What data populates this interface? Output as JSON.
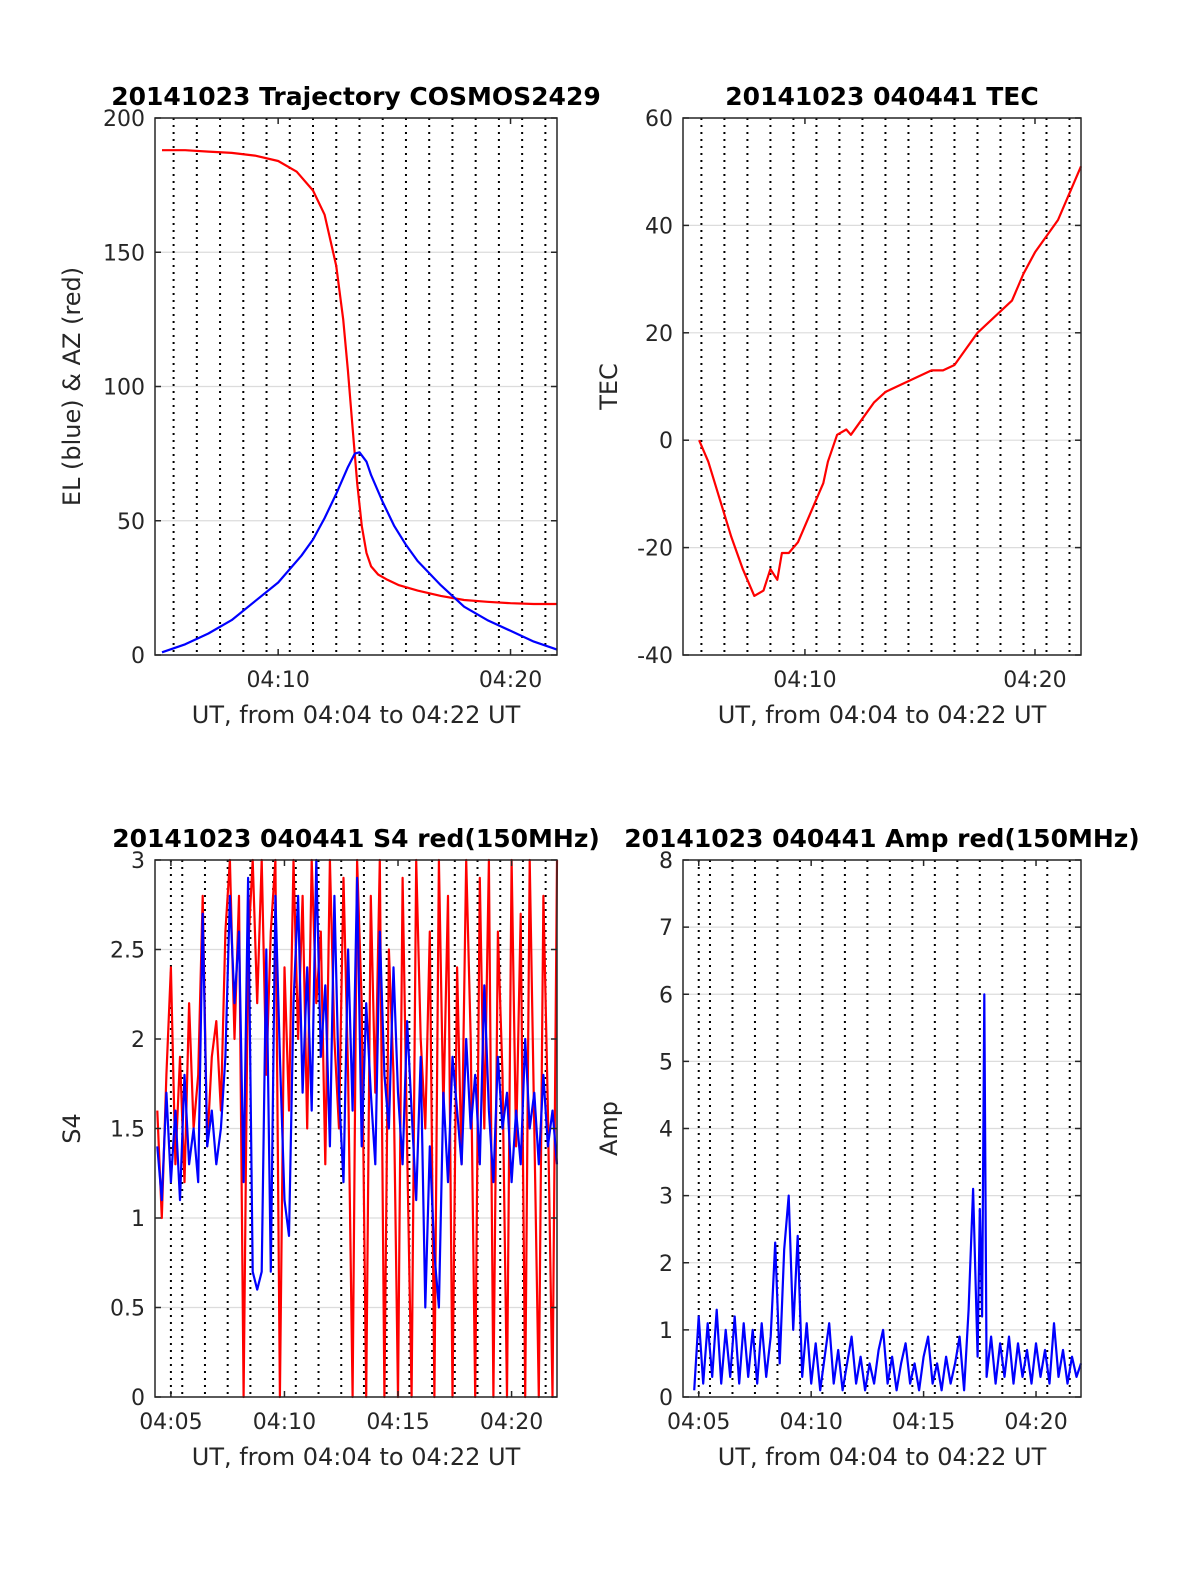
{
  "chart_data": [
    {
      "type": "line",
      "title": "20141023 Trajectory COSMOS2429",
      "xlabel": "UT, from 04:04 to 04:22 UT",
      "ylabel": "EL (blue) & AZ (red)",
      "xlim": [
        4.7,
        22
      ],
      "ylim": [
        0,
        200
      ],
      "yticks": [
        0,
        50,
        100,
        150,
        200
      ],
      "xticks": [
        {
          "v": 10,
          "label": "04:10"
        },
        {
          "v": 20,
          "label": "04:20"
        }
      ],
      "vgrid": [
        5.5,
        6.5,
        7.5,
        8.5,
        9.5,
        10.5,
        11.5,
        12.5,
        13.5,
        14.5,
        15.5,
        16.5,
        17.5,
        18.5,
        19.5,
        20.5,
        21.5
      ],
      "series": [
        {
          "color": "#ff0000",
          "x": [
            5.0,
            6.0,
            7.0,
            8.0,
            9.0,
            10.0,
            10.8,
            11.5,
            12.0,
            12.5,
            12.8,
            13.0,
            13.2,
            13.4,
            13.6,
            13.8,
            14.0,
            14.3,
            14.7,
            15.2,
            16.0,
            17.0,
            18.0,
            19.0,
            20.0,
            21.0,
            22.0
          ],
          "y": [
            188,
            188,
            187.5,
            187,
            186,
            184,
            180,
            173,
            164,
            145,
            125,
            106,
            85,
            64,
            48,
            38,
            33,
            30,
            28,
            26,
            24,
            22,
            20.5,
            19.8,
            19.3,
            19.0,
            19.0
          ]
        },
        {
          "color": "#0000ff",
          "x": [
            5.0,
            6.0,
            7.0,
            8.0,
            9.0,
            10.0,
            11.0,
            11.5,
            12.0,
            12.5,
            13.0,
            13.3,
            13.5,
            13.8,
            14.0,
            14.5,
            15.0,
            15.5,
            16.0,
            17.0,
            18.0,
            19.0,
            20.0,
            21.0,
            22.0
          ],
          "y": [
            1,
            4,
            8,
            13,
            20,
            27,
            37,
            43,
            51,
            60,
            70,
            75,
            75.5,
            72,
            67,
            57,
            48,
            41,
            35,
            26,
            18,
            13,
            9,
            5,
            2
          ]
        }
      ]
    },
    {
      "type": "line",
      "title": "20141023 040441 TEC",
      "xlabel": "UT, from 04:04 to 04:22 UT",
      "ylabel": "TEC",
      "xlim": [
        4.7,
        22
      ],
      "ylim": [
        -40,
        60
      ],
      "yticks": [
        -40,
        -20,
        0,
        20,
        40,
        60
      ],
      "xticks": [
        {
          "v": 10,
          "label": "04:10"
        },
        {
          "v": 20,
          "label": "04:20"
        }
      ],
      "vgrid": [
        5.5,
        6.5,
        7.5,
        8.5,
        9.5,
        10.5,
        11.5,
        12.5,
        13.5,
        14.5,
        15.5,
        16.5,
        17.5,
        18.5,
        19.5,
        20.5,
        21.5
      ],
      "series": [
        {
          "color": "#ff0000",
          "x": [
            5.4,
            5.8,
            6.3,
            6.8,
            7.3,
            7.8,
            8.2,
            8.5,
            8.8,
            9.0,
            9.3,
            9.7,
            10.0,
            10.4,
            10.8,
            11.0,
            11.4,
            11.8,
            12.0,
            12.5,
            13.0,
            13.5,
            14.0,
            14.5,
            15.0,
            15.5,
            16.0,
            16.5,
            17.0,
            17.5,
            18.0,
            18.5,
            19.0,
            19.5,
            20.0,
            20.5,
            21.0,
            21.5,
            22.0
          ],
          "y": [
            0,
            -4,
            -11,
            -18,
            -24,
            -29,
            -28,
            -24,
            -26,
            -21,
            -21,
            -19,
            -16,
            -12,
            -8,
            -4,
            1,
            2,
            1,
            4,
            7,
            9,
            10,
            11,
            12,
            13,
            13,
            14,
            17,
            20,
            22,
            24,
            26,
            31,
            35,
            38,
            41,
            46,
            51
          ]
        }
      ]
    },
    {
      "type": "line",
      "title": "20141023 040441 S4 red(150MHz)",
      "xlabel": "UT, from 04:04 to 04:22 UT",
      "ylabel": "S4",
      "xlim": [
        4.3,
        22
      ],
      "ylim": [
        0,
        3
      ],
      "yticks": [
        0,
        0.5,
        1,
        1.5,
        2,
        2.5,
        3
      ],
      "yticklabels": [
        "0",
        "0.5",
        "1",
        "1.5",
        "2",
        "2.5",
        "3"
      ],
      "xticks": [
        {
          "v": 5,
          "label": "04:05"
        },
        {
          "v": 10,
          "label": "04:10"
        },
        {
          "v": 15,
          "label": "04:15"
        },
        {
          "v": 20,
          "label": "04:20"
        }
      ],
      "vgrid": [
        5.0,
        5.5,
        6.5,
        7.5,
        8.5,
        9.5,
        10.5,
        11.5,
        12.5,
        13.5,
        14.5,
        15.5,
        16.5,
        17.5,
        18.5,
        19.5,
        20.5,
        21.5
      ],
      "series": [
        {
          "color": "#ff0000",
          "x": [
            4.4,
            4.6,
            4.8,
            5.0,
            5.2,
            5.4,
            5.6,
            5.8,
            6.0,
            6.2,
            6.4,
            6.6,
            6.8,
            7.0,
            7.2,
            7.4,
            7.6,
            7.8,
            8.0,
            8.2,
            8.4,
            8.6,
            8.8,
            9.0,
            9.2,
            9.4,
            9.6,
            9.8,
            10.0,
            10.2,
            10.4,
            10.6,
            10.8,
            11.0,
            11.2,
            11.4,
            11.6,
            11.8,
            12.0,
            12.2,
            12.4,
            12.6,
            12.8,
            13.0,
            13.2,
            13.4,
            13.6,
            13.8,
            14.0,
            14.2,
            14.4,
            14.6,
            14.8,
            15.0,
            15.2,
            15.4,
            15.6,
            15.8,
            16.0,
            16.2,
            16.4,
            16.6,
            16.8,
            17.0,
            17.2,
            17.4,
            17.6,
            17.8,
            18.0,
            18.2,
            18.4,
            18.6,
            18.8,
            19.0,
            19.2,
            19.4,
            19.6,
            19.8,
            20.0,
            20.2,
            20.4,
            20.6,
            20.8,
            21.0,
            21.2,
            21.4,
            21.6,
            21.8,
            22.0
          ],
          "y": [
            1.6,
            1.0,
            1.8,
            2.4,
            1.3,
            1.9,
            1.2,
            2.2,
            1.5,
            1.8,
            2.8,
            1.4,
            1.9,
            2.1,
            1.6,
            2.6,
            3.0,
            2.0,
            2.8,
            0,
            2.5,
            3.0,
            2.2,
            3.0,
            1.8,
            2.6,
            3.0,
            0,
            2.4,
            1.6,
            3.0,
            2.0,
            2.8,
            1.5,
            3.0,
            2.2,
            2.6,
            1.3,
            3.0,
            2.0,
            1.5,
            2.9,
            1.8,
            0,
            3.0,
            2.2,
            0,
            2.8,
            1.7,
            3.0,
            0,
            2.5,
            1.8,
            0,
            2.9,
            1.4,
            0,
            3.0,
            2.0,
            1.5,
            2.6,
            0,
            3.0,
            1.6,
            2.8,
            0,
            2.4,
            1.3,
            3.0,
            2.0,
            0,
            2.9,
            1.5,
            3.0,
            0,
            2.6,
            1.8,
            0,
            3.0,
            1.4,
            2.7,
            0,
            3.0,
            1.5,
            0,
            2.8,
            1.6,
            0,
            3.0
          ]
        },
        {
          "color": "#0000ff",
          "x": [
            4.4,
            4.6,
            4.8,
            5.0,
            5.2,
            5.4,
            5.6,
            5.8,
            6.0,
            6.2,
            6.4,
            6.6,
            6.8,
            7.0,
            7.2,
            7.4,
            7.6,
            7.8,
            8.0,
            8.2,
            8.4,
            8.6,
            8.8,
            9.0,
            9.2,
            9.4,
            9.6,
            9.8,
            10.0,
            10.2,
            10.4,
            10.6,
            10.8,
            11.0,
            11.2,
            11.4,
            11.6,
            11.8,
            12.0,
            12.2,
            12.4,
            12.6,
            12.8,
            13.0,
            13.2,
            13.4,
            13.6,
            13.8,
            14.0,
            14.2,
            14.4,
            14.6,
            14.8,
            15.0,
            15.2,
            15.4,
            15.6,
            15.8,
            16.0,
            16.2,
            16.4,
            16.6,
            16.8,
            17.0,
            17.2,
            17.4,
            17.6,
            17.8,
            18.0,
            18.2,
            18.4,
            18.6,
            18.8,
            19.0,
            19.2,
            19.4,
            19.6,
            19.8,
            20.0,
            20.2,
            20.4,
            20.6,
            20.8,
            21.0,
            21.2,
            21.4,
            21.6,
            21.8,
            22.0
          ],
          "y": [
            1.4,
            1.1,
            1.7,
            1.2,
            1.6,
            1.1,
            1.8,
            1.3,
            1.5,
            1.2,
            2.7,
            1.4,
            1.6,
            1.3,
            1.5,
            1.9,
            2.8,
            2.2,
            2.6,
            1.2,
            2.9,
            0.7,
            0.6,
            0.7,
            2.5,
            0.7,
            2.8,
            1.9,
            1.1,
            0.9,
            2.2,
            2.8,
            1.7,
            2.4,
            1.6,
            3.0,
            1.9,
            2.3,
            1.4,
            2.8,
            1.7,
            1.2,
            2.5,
            1.6,
            2.9,
            1.4,
            2.2,
            1.7,
            1.3,
            2.6,
            1.8,
            1.5,
            2.4,
            1.7,
            1.3,
            2.1,
            1.6,
            1.1,
            1.9,
            0.5,
            1.4,
            0.8,
            0.5,
            1.7,
            1.2,
            1.9,
            1.6,
            1.3,
            2.0,
            1.5,
            1.8,
            1.3,
            2.3,
            1.6,
            1.2,
            1.9,
            1.5,
            1.7,
            1.2,
            1.6,
            1.3,
            2.0,
            1.5,
            1.7,
            1.3,
            1.8,
            1.4,
            1.6,
            1.3
          ]
        }
      ]
    },
    {
      "type": "line",
      "title": "20141023 040441 Amp red(150MHz)",
      "xlabel": "UT, from 04:04 to 04:22 UT",
      "ylabel": "Amp",
      "xlim": [
        4.3,
        22
      ],
      "ylim": [
        0,
        8
      ],
      "yticks": [
        0,
        1,
        2,
        3,
        4,
        5,
        6,
        7,
        8
      ],
      "xticks": [
        {
          "v": 5,
          "label": "04:05"
        },
        {
          "v": 10,
          "label": "04:10"
        },
        {
          "v": 15,
          "label": "04:15"
        },
        {
          "v": 20,
          "label": "04:20"
        }
      ],
      "vgrid": [
        5.0,
        5.5,
        6.5,
        7.5,
        8.5,
        9.5,
        10.5,
        11.5,
        12.5,
        13.5,
        14.5,
        15.5,
        16.5,
        17.5,
        18.5,
        19.5,
        20.5,
        21.5
      ],
      "series": [
        {
          "color": "#0000ff",
          "x": [
            4.8,
            5.0,
            5.2,
            5.4,
            5.6,
            5.8,
            6.0,
            6.2,
            6.4,
            6.6,
            6.8,
            7.0,
            7.2,
            7.4,
            7.6,
            7.8,
            8.0,
            8.2,
            8.4,
            8.6,
            8.8,
            9.0,
            9.2,
            9.4,
            9.6,
            9.8,
            10.0,
            10.2,
            10.4,
            10.6,
            10.8,
            11.0,
            11.2,
            11.4,
            11.6,
            11.8,
            12.0,
            12.2,
            12.4,
            12.6,
            12.8,
            13.0,
            13.2,
            13.4,
            13.6,
            13.8,
            14.0,
            14.2,
            14.4,
            14.6,
            14.8,
            15.0,
            15.2,
            15.4,
            15.6,
            15.8,
            16.0,
            16.2,
            16.4,
            16.6,
            16.8,
            17.0,
            17.2,
            17.4,
            17.5,
            17.6,
            17.7,
            17.8,
            18.0,
            18.2,
            18.4,
            18.6,
            18.8,
            19.0,
            19.2,
            19.4,
            19.6,
            19.8,
            20.0,
            20.2,
            20.4,
            20.6,
            20.8,
            21.0,
            21.2,
            21.4,
            21.6,
            21.8,
            22.0
          ],
          "y": [
            0.1,
            1.2,
            0.2,
            1.1,
            0.3,
            1.3,
            0.2,
            1.0,
            0.3,
            1.2,
            0.2,
            1.1,
            0.3,
            1.0,
            0.2,
            1.1,
            0.3,
            0.9,
            2.3,
            0.5,
            2.2,
            3.0,
            1.0,
            2.4,
            0.3,
            1.1,
            0.2,
            0.8,
            0.1,
            0.6,
            1.1,
            0.2,
            0.7,
            0.1,
            0.5,
            0.9,
            0.2,
            0.6,
            0.1,
            0.5,
            0.2,
            0.7,
            1.0,
            0.2,
            0.6,
            0.1,
            0.5,
            0.8,
            0.2,
            0.5,
            0.1,
            0.6,
            0.9,
            0.2,
            0.5,
            0.1,
            0.6,
            0.2,
            0.5,
            0.9,
            0.1,
            1.3,
            3.1,
            0.6,
            2.8,
            1.2,
            6.0,
            0.3,
            0.9,
            0.2,
            0.8,
            0.3,
            0.9,
            0.2,
            0.8,
            0.3,
            0.7,
            0.2,
            0.8,
            0.3,
            0.7,
            0.2,
            1.1,
            0.3,
            0.7,
            0.2,
            0.6,
            0.3,
            0.5
          ]
        }
      ]
    }
  ]
}
